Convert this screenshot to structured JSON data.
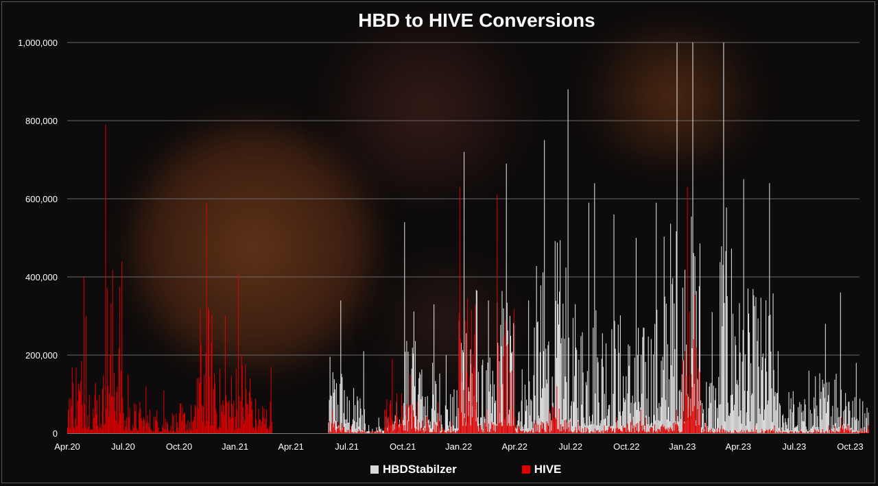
{
  "chart_data": {
    "type": "bar",
    "title": "HBD to HIVE Conversions",
    "xlabel": "",
    "ylabel": "",
    "ylim": [
      0,
      1000000
    ],
    "y_ticks": [
      "0",
      "200,000",
      "400,000",
      "600,000",
      "800,000",
      "1,000,000"
    ],
    "y_tick_values": [
      0,
      200000,
      400000,
      600000,
      800000,
      1000000
    ],
    "x_ticks": [
      "Apr.20",
      "Jul.20",
      "Oct.20",
      "Jan.21",
      "Apr.21",
      "Jul.21",
      "Oct.21",
      "Jan.22",
      "Apr.22",
      "Jul.22",
      "Oct.22",
      "Jan.23",
      "Apr.23",
      "Jul.23",
      "Oct.23"
    ],
    "x_range_months": [
      "Apr.20",
      "Oct.23"
    ],
    "grid": true,
    "legend_position": "bottom",
    "colors": {
      "HBDStabilzer": "#d9d9d9",
      "HIVE": "#e00000",
      "background": "#0d0b0b",
      "grid": "#6b6b6b",
      "text": "#ffffff"
    },
    "series": [
      {
        "name": "HBDStabilzer",
        "values_by_month": [
          [
            "Apr.20",
            0
          ],
          [
            "May.20",
            0
          ],
          [
            "Jun.20",
            0
          ],
          [
            "Jul.20",
            0
          ],
          [
            "Aug.20",
            0
          ],
          [
            "Sep.20",
            0
          ],
          [
            "Oct.20",
            0
          ],
          [
            "Nov.20",
            0
          ],
          [
            "Dec.20",
            0
          ],
          [
            "Jan.21",
            0
          ],
          [
            "Feb.21",
            0
          ],
          [
            "Mar.21",
            0
          ],
          [
            "Apr.21",
            0
          ],
          [
            "May.21",
            0
          ],
          [
            "Jun.21",
            340000
          ],
          [
            "Jul.21",
            210000
          ],
          [
            "Aug.21",
            40000
          ],
          [
            "Sep.21",
            80000
          ],
          [
            "Oct.21",
            540000
          ],
          [
            "Nov.21",
            330000
          ],
          [
            "Dec.21",
            200000
          ],
          [
            "Jan.22",
            720000
          ],
          [
            "Feb.22",
            340000
          ],
          [
            "Mar.22",
            690000
          ],
          [
            "Apr.22",
            340000
          ],
          [
            "May.22",
            750000
          ],
          [
            "Jun.22",
            880000
          ],
          [
            "Jul.22",
            590000
          ],
          [
            "Aug.22",
            640000
          ],
          [
            "Sep.22",
            560000
          ],
          [
            "Oct.22",
            500000
          ],
          [
            "Nov.22",
            590000
          ],
          [
            "Dec.22",
            1000000
          ],
          [
            "Jan.23",
            1000000
          ],
          [
            "Feb.23",
            310000
          ],
          [
            "Mar.23",
            1000000
          ],
          [
            "Apr.23",
            650000
          ],
          [
            "May.23",
            640000
          ],
          [
            "Jun.23",
            210000
          ],
          [
            "Jul.23",
            160000
          ],
          [
            "Aug.23",
            280000
          ],
          [
            "Sep.23",
            360000
          ],
          [
            "Oct.23",
            180000
          ]
        ]
      },
      {
        "name": "HIVE",
        "values_by_month": [
          [
            "Apr.20",
            400000
          ],
          [
            "May.20",
            300000
          ],
          [
            "Jun.20",
            790000
          ],
          [
            "Jul.20",
            150000
          ],
          [
            "Aug.20",
            120000
          ],
          [
            "Sep.20",
            110000
          ],
          [
            "Oct.20",
            140000
          ],
          [
            "Nov.20",
            590000
          ],
          [
            "Dec.20",
            300000
          ],
          [
            "Jan.21",
            410000
          ],
          [
            "Feb.21",
            170000
          ],
          [
            "Mar.21",
            0
          ],
          [
            "Apr.21",
            0
          ],
          [
            "May.21",
            0
          ],
          [
            "Jun.21",
            60000
          ],
          [
            "Jul.21",
            20000
          ],
          [
            "Aug.21",
            10000
          ],
          [
            "Sep.21",
            190000
          ],
          [
            "Oct.21",
            150000
          ],
          [
            "Nov.21",
            80000
          ],
          [
            "Dec.21",
            30000
          ],
          [
            "Jan.22",
            630000
          ],
          [
            "Feb.22",
            60000
          ],
          [
            "Mar.22",
            610000
          ],
          [
            "Apr.22",
            40000
          ],
          [
            "May.22",
            60000
          ],
          [
            "Jun.22",
            120000
          ],
          [
            "Jul.22",
            30000
          ],
          [
            "Aug.22",
            20000
          ],
          [
            "Sep.22",
            40000
          ],
          [
            "Oct.22",
            60000
          ],
          [
            "Nov.22",
            40000
          ],
          [
            "Dec.22",
            60000
          ],
          [
            "Jan.23",
            630000
          ],
          [
            "Feb.23",
            30000
          ],
          [
            "Mar.23",
            20000
          ],
          [
            "Apr.23",
            20000
          ],
          [
            "May.23",
            20000
          ],
          [
            "Jun.23",
            10000
          ],
          [
            "Jul.23",
            10000
          ],
          [
            "Aug.23",
            20000
          ],
          [
            "Sep.23",
            40000
          ],
          [
            "Oct.23",
            20000
          ]
        ]
      }
    ]
  }
}
